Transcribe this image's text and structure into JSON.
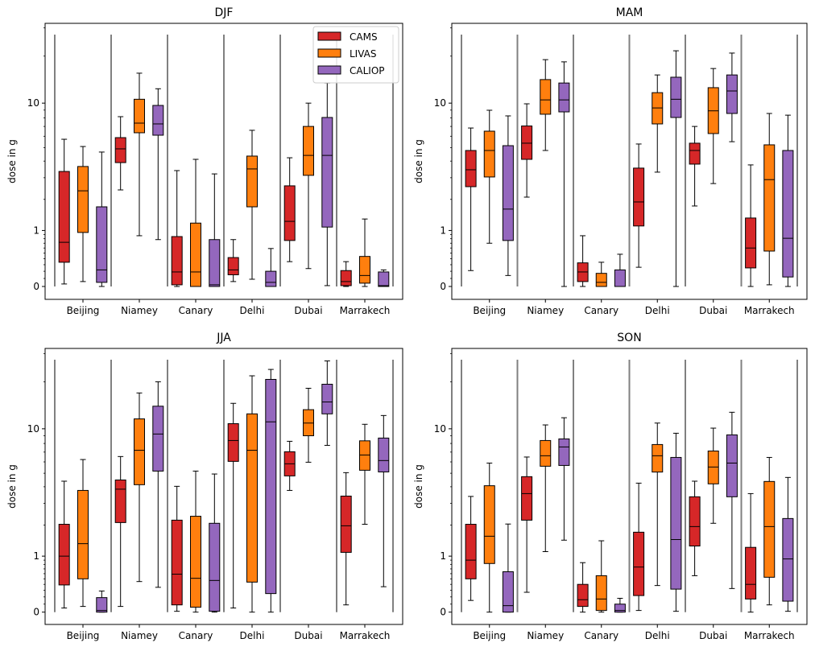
{
  "figure": {
    "legend": [
      {
        "name": "CAMS",
        "color": "#d62728"
      },
      {
        "name": "LIVAS",
        "color": "#ff7f0e"
      },
      {
        "name": "CALIOP",
        "color": "#9467bd"
      }
    ],
    "separator_color": "#808080"
  },
  "chart_data": [
    {
      "type": "boxplot",
      "title": "DJF",
      "ylabel": "dose in g",
      "yscale": "log(x+0.85)",
      "yticks": [
        {
          "value": 0,
          "label": "0"
        },
        {
          "value": 1,
          "label": "1"
        },
        {
          "value": 10,
          "label": "10"
        }
      ],
      "categories": [
        "Beijing",
        "Niamey",
        "Canary",
        "Delhi",
        "Dubai",
        "Marrakech"
      ],
      "legend_position": "top-right",
      "series": [
        {
          "name": "CAMS",
          "boxes": [
            {
              "whislo": 0.03,
              "q1": 0.34,
              "med": 0.72,
              "q3": 3.35,
              "whishi": 5.72
            },
            {
              "whislo": 2.4,
              "q1": 3.9,
              "med": 4.9,
              "q3": 5.87,
              "whishi": 8.14
            },
            {
              "whislo": 0.0,
              "q1": 0.02,
              "med": 0.19,
              "q3": 0.85,
              "whishi": 3.4
            },
            {
              "whislo": 0.06,
              "q1": 0.15,
              "med": 0.22,
              "q3": 0.42,
              "whishi": 0.78
            },
            {
              "whislo": 0.35,
              "q1": 0.76,
              "med": 1.25,
              "q3": 2.59,
              "whishi": 4.23
            },
            {
              "whislo": 0.0,
              "q1": 0.01,
              "med": 0.06,
              "q3": 0.21,
              "whishi": 0.35
            }
          ]
        },
        {
          "name": "LIVAS",
          "boxes": [
            {
              "whislo": 0.06,
              "q1": 0.95,
              "med": 2.36,
              "q3": 3.65,
              "whishi": 5.09
            },
            {
              "whislo": 0.87,
              "q1": 6.34,
              "med": 7.37,
              "q3": 10.6,
              "whishi": 15.6
            },
            {
              "whislo": 0.0,
              "q1": 0.0,
              "med": 0.19,
              "q3": 1.2,
              "whishi": 4.12
            },
            {
              "whislo": 0.09,
              "q1": 1.72,
              "med": 3.5,
              "q3": 4.35,
              "whishi": 6.59
            },
            {
              "whislo": 0.24,
              "q1": 3.13,
              "med": 4.4,
              "q3": 7.0,
              "whishi": 10.0
            },
            {
              "whislo": 0.0,
              "q1": 0.04,
              "med": 0.14,
              "q3": 0.44,
              "whishi": 1.32
            }
          ]
        },
        {
          "name": "CALIOP",
          "boxes": [
            {
              "whislo": 0.0,
              "q1": 0.05,
              "med": 0.22,
              "q3": 1.72,
              "whishi": 4.65
            },
            {
              "whislo": 0.78,
              "q1": 6.1,
              "med": 7.28,
              "q3": 9.66,
              "whishi": 12.4
            },
            {
              "whislo": 0.0,
              "q1": 0.0,
              "med": 0.02,
              "q3": 0.78,
              "whishi": 3.21
            },
            {
              "whislo": 0.0,
              "q1": 0.0,
              "med": 0.05,
              "q3": 0.2,
              "whishi": 0.59
            },
            {
              "whislo": 0.01,
              "q1": 1.09,
              "med": 4.4,
              "q3": 8.04,
              "whishi": 13.5
            },
            {
              "whislo": 0.0,
              "q1": 0.0,
              "med": 0.01,
              "q3": 0.19,
              "whishi": 0.22
            }
          ]
        }
      ]
    },
    {
      "type": "boxplot",
      "title": "MAM",
      "ylabel": "dose in g",
      "yscale": "log(x+0.85)",
      "yticks": [
        {
          "value": 0,
          "label": "0"
        },
        {
          "value": 1,
          "label": "1"
        },
        {
          "value": 10,
          "label": "10"
        }
      ],
      "categories": [
        "Beijing",
        "Niamey",
        "Canary",
        "Delhi",
        "Dubai",
        "Marrakech"
      ],
      "series": [
        {
          "name": "CAMS",
          "boxes": [
            {
              "whislo": 0.21,
              "q1": 2.55,
              "med": 3.45,
              "q3": 4.77,
              "whishi": 6.83
            },
            {
              "whislo": 2.09,
              "q1": 4.12,
              "med": 5.37,
              "q3": 7.05,
              "whishi": 9.9
            },
            {
              "whislo": 0.0,
              "q1": 0.06,
              "med": 0.19,
              "q3": 0.33,
              "whishi": 0.87
            },
            {
              "whislo": 0.26,
              "q1": 1.12,
              "med": 1.9,
              "q3": 3.55,
              "whishi": 5.3
            },
            {
              "whislo": 1.75,
              "q1": 3.8,
              "med": 4.77,
              "q3": 5.37,
              "whishi": 7.0
            },
            {
              "whislo": 0.0,
              "q1": 0.25,
              "med": 0.6,
              "q3": 1.35,
              "whishi": 3.75
            }
          ]
        },
        {
          "name": "LIVAS",
          "boxes": [
            {
              "whislo": 0.7,
              "q1": 3.04,
              "med": 4.77,
              "q3": 6.5,
              "whishi": 8.98
            },
            {
              "whislo": 4.77,
              "q1": 8.45,
              "med": 10.5,
              "q3": 14.2,
              "whishi": 19.0
            },
            {
              "whislo": 0.0,
              "q1": 0.0,
              "med": 0.05,
              "q3": 0.17,
              "whishi": 0.34
            },
            {
              "whislo": 3.31,
              "q1": 7.28,
              "med": 9.3,
              "q3": 11.7,
              "whishi": 15.2
            },
            {
              "whislo": 2.7,
              "q1": 6.26,
              "med": 8.9,
              "q3": 12.6,
              "whishi": 16.7
            },
            {
              "whislo": 0.02,
              "q1": 0.54,
              "med": 2.9,
              "q3": 5.23,
              "whishi": 8.55
            }
          ]
        },
        {
          "name": "CALIOP",
          "boxes": [
            {
              "whislo": 0.14,
              "q1": 0.76,
              "med": 1.64,
              "q3": 5.16,
              "whishi": 8.24
            },
            {
              "whislo": 0.0,
              "q1": 8.76,
              "med": 10.5,
              "q3": 13.5,
              "whishi": 18.4
            },
            {
              "whislo": 0.0,
              "q1": 0.0,
              "med": 0.0,
              "q3": 0.22,
              "whishi": 0.48
            },
            {
              "whislo": 0.0,
              "q1": 8.04,
              "med": 10.6,
              "q3": 14.7,
              "whishi": 21.6
            },
            {
              "whislo": 5.5,
              "q1": 8.55,
              "med": 12.0,
              "q3": 15.2,
              "whishi": 20.9
            },
            {
              "whislo": 0.0,
              "q1": 0.12,
              "med": 0.81,
              "q3": 4.77,
              "whishi": 8.33
            }
          ]
        }
      ]
    },
    {
      "type": "boxplot",
      "title": "JJA",
      "ylabel": "dose in g",
      "yscale": "log(x+0.85)",
      "yticks": [
        {
          "value": 0,
          "label": "0"
        },
        {
          "value": 1,
          "label": "1"
        },
        {
          "value": 10,
          "label": "10"
        }
      ],
      "categories": [
        "Beijing",
        "Niamey",
        "Canary",
        "Delhi",
        "Dubai",
        "Marrakech"
      ],
      "series": [
        {
          "name": "CAMS",
          "boxes": [
            {
              "whislo": 0.05,
              "q1": 0.39,
              "med": 1.0,
              "q3": 2.03,
              "whishi": 4.39
            },
            {
              "whislo": 0.07,
              "q1": 2.1,
              "med": 3.84,
              "q3": 4.48,
              "whishi": 6.53
            },
            {
              "whislo": 0.01,
              "q1": 0.09,
              "med": 0.59,
              "q3": 2.2,
              "whishi": 4.03
            },
            {
              "whislo": 0.05,
              "q1": 6.05,
              "med": 8.37,
              "q3": 10.8,
              "whishi": 14.6
            },
            {
              "whislo": 3.76,
              "q1": 4.79,
              "med": 5.82,
              "q3": 7.04,
              "whishi": 8.27
            },
            {
              "whislo": 0.09,
              "q1": 1.1,
              "med": 1.97,
              "q3": 3.41,
              "whishi": 5.05
            }
          ]
        },
        {
          "name": "LIVAS",
          "boxes": [
            {
              "whislo": 0.07,
              "q1": 0.5,
              "med": 1.35,
              "q3": 3.76,
              "whishi": 6.23
            },
            {
              "whislo": 0.45,
              "q1": 4.14,
              "med": 7.2,
              "q3": 11.6,
              "whishi": 17.0
            },
            {
              "whislo": 0.0,
              "q1": 0.06,
              "med": 0.51,
              "q3": 2.37,
              "whishi": 5.18
            },
            {
              "whislo": 0.0,
              "q1": 0.44,
              "med": 7.2,
              "q3": 12.5,
              "whishi": 21.8
            },
            {
              "whislo": 5.97,
              "q1": 9.0,
              "med": 10.9,
              "q3": 13.3,
              "whishi": 18.2
            },
            {
              "whislo": 2.03,
              "q1": 5.25,
              "med": 6.69,
              "q3": 8.33,
              "whishi": 10.7
            }
          ]
        },
        {
          "name": "CALIOP",
          "boxes": [
            {
              "whislo": 0.0,
              "q1": 0.0,
              "med": 0.02,
              "q3": 0.19,
              "whishi": 0.29
            },
            {
              "whislo": 0.35,
              "q1": 5.18,
              "med": 9.24,
              "q3": 14.0,
              "whishi": 20.0
            },
            {
              "whislo": 0.0,
              "q1": 0.01,
              "med": 0.47,
              "q3": 2.07,
              "whishi": 4.94
            },
            {
              "whislo": 0.0,
              "q1": 0.25,
              "med": 11.1,
              "q3": 20.7,
              "whishi": 23.9
            },
            {
              "whislo": 7.77,
              "q1": 12.5,
              "med": 14.9,
              "q3": 19.3,
              "whishi": 27.0
            },
            {
              "whislo": 0.36,
              "q1": 5.11,
              "med": 6.13,
              "q3": 8.69,
              "whishi": 12.2
            }
          ]
        }
      ]
    },
    {
      "type": "boxplot",
      "title": "SON",
      "ylabel": "dose in g",
      "yscale": "log(x+0.85)",
      "yticks": [
        {
          "value": 0,
          "label": "0"
        },
        {
          "value": 1,
          "label": "1"
        },
        {
          "value": 10,
          "label": "10"
        }
      ],
      "categories": [
        "Beijing",
        "Niamey",
        "Canary",
        "Delhi",
        "Dubai",
        "Marrakech"
      ],
      "series": [
        {
          "name": "CAMS",
          "boxes": [
            {
              "whislo": 0.15,
              "q1": 0.5,
              "med": 0.9,
              "q3": 2.03,
              "whishi": 3.39
            },
            {
              "whislo": 0.27,
              "q1": 2.2,
              "med": 3.56,
              "q3": 4.73,
              "whishi": 6.48
            },
            {
              "whislo": 0.0,
              "q1": 0.07,
              "med": 0.16,
              "q3": 0.4,
              "whishi": 0.84
            },
            {
              "whislo": 0.02,
              "q1": 0.22,
              "med": 0.74,
              "q3": 1.73,
              "whishi": 4.25
            },
            {
              "whislo": 0.56,
              "q1": 1.28,
              "med": 1.94,
              "q3": 3.37,
              "whishi": 4.39
            },
            {
              "whislo": 0.0,
              "q1": 0.17,
              "med": 0.4,
              "q3": 1.24,
              "whishi": 3.56
            }
          ]
        },
        {
          "name": "LIVAS",
          "boxes": [
            {
              "whislo": 0.0,
              "q1": 0.82,
              "med": 1.59,
              "q3": 4.07,
              "whishi": 5.89
            },
            {
              "whislo": 1.12,
              "q1": 5.6,
              "med": 6.61,
              "q3": 8.37,
              "whishi": 10.6
            },
            {
              "whislo": 0.0,
              "q1": 0.02,
              "med": 0.17,
              "q3": 0.56,
              "whishi": 1.44
            },
            {
              "whislo": 0.38,
              "q1": 5.1,
              "med": 6.61,
              "q3": 7.87,
              "whishi": 10.9
            },
            {
              "whislo": 2.07,
              "q1": 4.2,
              "med": 5.53,
              "q3": 7.12,
              "whishi": 10.1
            },
            {
              "whislo": 0.09,
              "q1": 0.53,
              "med": 1.94,
              "q3": 4.37,
              "whishi": 6.44
            }
          ]
        },
        {
          "name": "CALIOP",
          "boxes": [
            {
              "whislo": 0.0,
              "q1": 0.0,
              "med": 0.08,
              "q3": 0.64,
              "whishi": 2.04
            },
            {
              "whislo": 1.46,
              "q1": 5.67,
              "med": 7.58,
              "q3": 8.58,
              "whishi": 11.8
            },
            {
              "whislo": 0.0,
              "q1": 0.0,
              "med": 0.02,
              "q3": 0.1,
              "whishi": 0.18
            },
            {
              "whislo": 0.01,
              "q1": 0.32,
              "med": 1.48,
              "q3": 6.44,
              "whishi": 9.35
            },
            {
              "whislo": 0.33,
              "q1": 3.37,
              "med": 5.89,
              "q3": 9.12,
              "whishi": 12.8
            },
            {
              "whislo": 0.01,
              "q1": 0.14,
              "med": 0.93,
              "q3": 2.27,
              "whishi": 4.67
            }
          ]
        }
      ]
    }
  ]
}
